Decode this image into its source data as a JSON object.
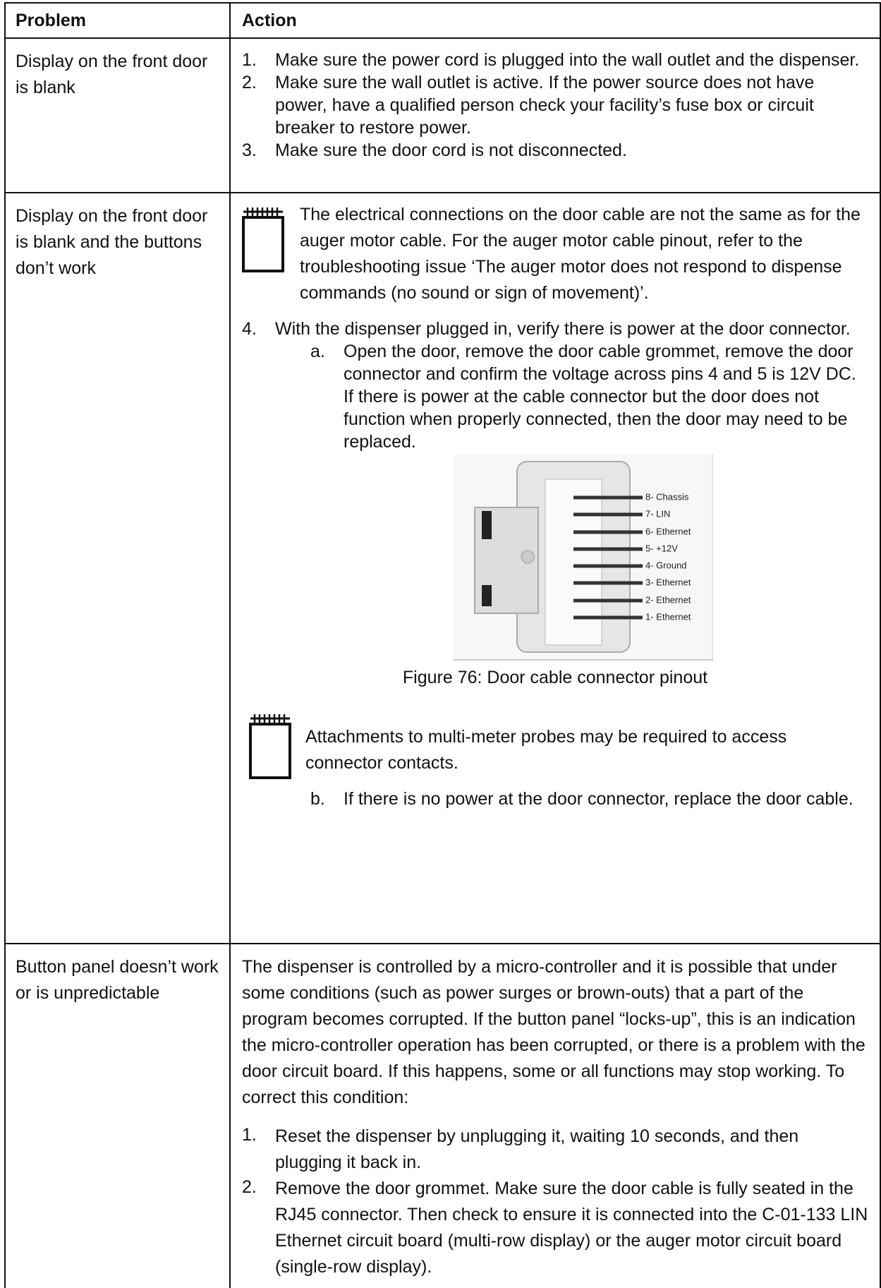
{
  "table": {
    "header": [
      "Problem",
      "Action"
    ],
    "rows": [
      {
        "problem": "Display on the front door is blank",
        "action": [
          {
            "marker": "1.",
            "text": "Make sure the power cord is plugged into the wall outlet and the dispenser."
          },
          {
            "marker": "2.",
            "text": "Make sure the wall outlet is active. If the power source does not have power, have a qualified person check your facility’s fuse box or circuit breaker to restore power."
          },
          {
            "marker": "3.",
            "text": "Make sure the door cord is not disconnected."
          }
        ]
      },
      {
        "problem": "Display on the front door is blank and the buttons don’t work",
        "action": [
          {
            "note": "The electrical connections on the door cable are not the same as for the auger motor cable. For the auger motor cable pinout, refer to the troubleshooting issue ‘The auger motor does not respond to dispense commands (no sound or sign of movement)’."
          },
          {
            "marker": "4.",
            "text": "With the dispenser plugged in, verify there is power at the door connector."
          },
          {
            "marker": "a.",
            "text": "Open the door, remove the door cable grommet, remove the door connector and confirm the voltage across pins 4 and 5 is 12V DC. If there is power at the cable connector but the door does not function when properly connected, then the door may need to be replaced."
          },
          {
            "pins": [
              "8- Chassis",
              "7- LIN",
              "6- Ethernet",
              "5- +12V",
              "4- Ground",
              "3- Ethernet",
              "2- Ethernet",
              "1- Ethernet"
            ],
            "caption": "Figure 76: Door cable connector pinout"
          },
          {
            "note": "Attachments to multi-meter probes may be required to access connector contacts."
          },
          {
            "marker": "b.",
            "text": "If there is no power at the door connector, replace the door cable."
          }
        ]
      },
      {
        "problem": "Button panel doesn’t work or is unpredictable",
        "action": [
          {
            "text": "The dispenser is controlled by a micro-controller and it is possible that under some conditions (such as power surges or brown-outs) that a part of the program becomes corrupted. If the button panel “locks-up”, this is an indication the micro-controller operation has been corrupted, or there is a problem with the door circuit board. If this happens, some or all functions may stop working. To correct this condition:"
          },
          {
            "marker": "1.",
            "text": "Reset the dispenser by unplugging it, waiting 10 seconds, and then plugging it back in."
          },
          {
            "marker": "2.",
            "text": "Remove the door grommet. Make sure the door cable is fully seated in the RJ45 connector.  Then check to ensure it is connected into the C-01-133 LIN Ethernet circuit board (multi-row display) or the auger motor circuit board (single-row display)."
          }
        ]
      }
    ]
  }
}
